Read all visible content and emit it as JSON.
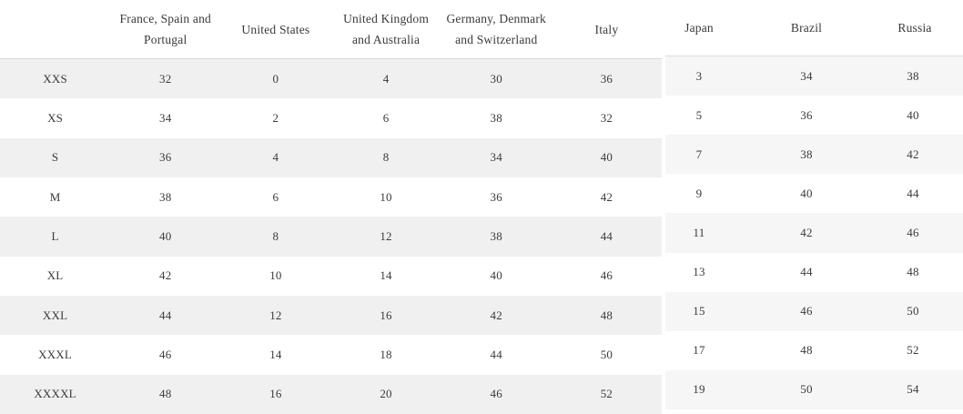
{
  "page": {
    "background": "#ffffff",
    "text_color": "#3a3a3a"
  },
  "left_table": {
    "header_labels": [
      "",
      "France, Spain and\nPortugal",
      "United States",
      "United Kingdom\nand Australia",
      "Germany, Denmark\nand Switzerland",
      "Italy"
    ],
    "rows": [
      [
        "XXS",
        "32",
        "0",
        "4",
        "30",
        "36"
      ],
      [
        "XS",
        "34",
        "2",
        "6",
        "38",
        "32"
      ],
      [
        "S",
        "36",
        "4",
        "8",
        "34",
        "40"
      ],
      [
        "M",
        "38",
        "6",
        "10",
        "36",
        "42"
      ],
      [
        "L",
        "40",
        "8",
        "12",
        "38",
        "44"
      ],
      [
        "XL",
        "42",
        "10",
        "14",
        "40",
        "46"
      ],
      [
        "XXL",
        "44",
        "12",
        "16",
        "42",
        "48"
      ],
      [
        "XXXL",
        "46",
        "14",
        "18",
        "44",
        "50"
      ],
      [
        "XXXXL",
        "48",
        "16",
        "20",
        "46",
        "52"
      ]
    ],
    "stripe_color": "#f0f0f0",
    "header_border_color": "#d6d6d6"
  },
  "right_table": {
    "header_labels": [
      "Japan",
      "Brazil",
      "Russia"
    ],
    "rows": [
      [
        "3",
        "34",
        "38"
      ],
      [
        "5",
        "36",
        "40"
      ],
      [
        "7",
        "38",
        "42"
      ],
      [
        "9",
        "40",
        "44"
      ],
      [
        "11",
        "42",
        "46"
      ],
      [
        "13",
        "44",
        "48"
      ],
      [
        "15",
        "46",
        "50"
      ],
      [
        "17",
        "48",
        "52"
      ],
      [
        "19",
        "50",
        "54"
      ]
    ],
    "stripe_color": "#f6f6f6",
    "header_border_color": "#dcdcdc"
  }
}
